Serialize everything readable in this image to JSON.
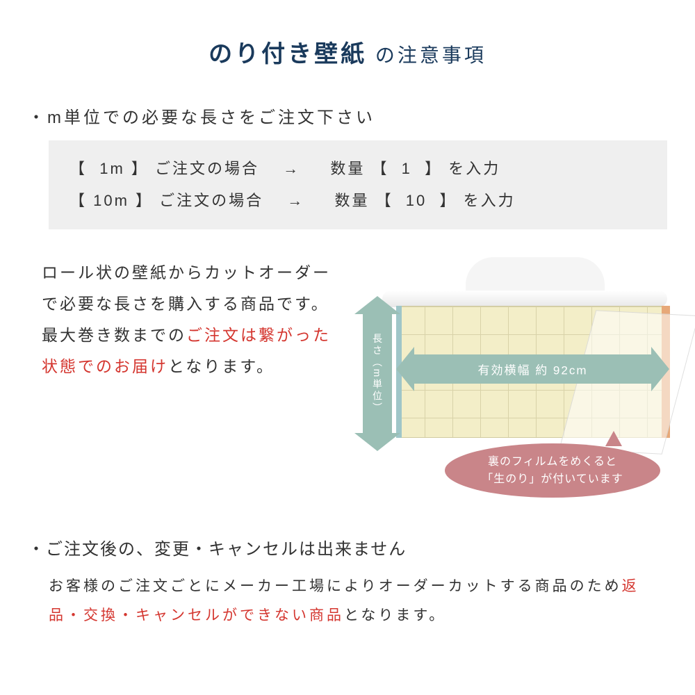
{
  "colors": {
    "heading": "#1a3a5c",
    "text": "#323232",
    "highlight": "#d4362f",
    "panel_bg": "#efefef",
    "arrow": "#9bbfb5",
    "bubble": "#c98589",
    "paper": "#f3eec8",
    "paper_grid": "#d8d2a8",
    "stripe_left": "#9fc6c8",
    "stripe_right": "#e7a878",
    "background": "#ffffff"
  },
  "typography": {
    "title_size_pt": 34,
    "title_sub_size_pt": 28,
    "bullet_size_pt": 24,
    "body_size_pt": 22,
    "desc_size_pt": 23,
    "arrow_label_h_pt": 17,
    "arrow_label_v_pt": 14,
    "bubble_pt": 16
  },
  "title": {
    "main": "のり付き壁紙",
    "sub": " の注意事項"
  },
  "section1": {
    "bullet": "・m単位での必要な長さをご注文下さい",
    "order_box": {
      "row1": "【  1m 】 ご注文の場合　 → 　 数量 【  1  】 を入力",
      "row2": "【 10m 】 ご注文の場合　 → 　 数量 【  10  】 を入力"
    }
  },
  "mid": {
    "desc": {
      "p1": "ロール状の壁紙からカットオーダーで必要な長さを購入する商品です。",
      "p2a": "最大巻き数までの",
      "p2red": "ご注文は繋がった状態でのお届け",
      "p2b": "となります。"
    },
    "illustration": {
      "v_arrow_label": "長さ（m単位）",
      "h_arrow_label": "有効横幅 約 92cm",
      "bubble_line1": "裏のフィルムをめくると",
      "bubble_line2": "「生のり」が付いています"
    }
  },
  "section2": {
    "bullet": "・ご注文後の、変更・キャンセルは出来ません",
    "body_a": "お客様のご注文ごとにメーカー工場によりオーダーカットする商品のため",
    "body_red": "返品・交換・キャンセルができない商品",
    "body_b": "となります。"
  }
}
